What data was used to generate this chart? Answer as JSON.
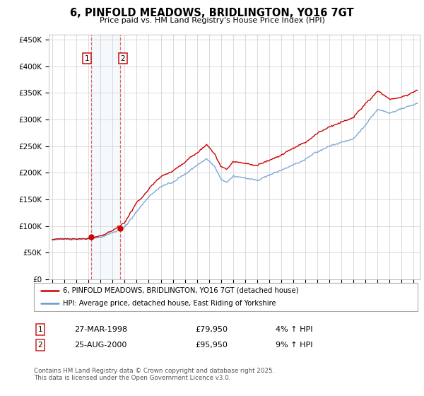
{
  "title": "6, PINFOLD MEADOWS, BRIDLINGTON, YO16 7GT",
  "subtitle": "Price paid vs. HM Land Registry's House Price Index (HPI)",
  "background_color": "#ffffff",
  "plot_bg_color": "#ffffff",
  "grid_color": "#cccccc",
  "ylabel_max": 450000,
  "ylabel_step": 50000,
  "xlim_start": 1994.7,
  "xlim_end": 2025.5,
  "ylim_min": 0,
  "ylim_max": 460000,
  "red_line_color": "#cc0000",
  "blue_line_color": "#6699cc",
  "marker1_date_x": 1998.23,
  "marker1_price": 79950,
  "marker2_date_x": 2000.65,
  "marker2_price": 95950,
  "shade_x1": 1998.23,
  "shade_x2": 2000.65,
  "legend_text1": "6, PINFOLD MEADOWS, BRIDLINGTON, YO16 7GT (detached house)",
  "legend_text2": "HPI: Average price, detached house, East Riding of Yorkshire",
  "table_row1": [
    "1",
    "27-MAR-1998",
    "£79,950",
    "4% ↑ HPI"
  ],
  "table_row2": [
    "2",
    "25-AUG-2000",
    "£95,950",
    "9% ↑ HPI"
  ],
  "footer_text": "Contains HM Land Registry data © Crown copyright and database right 2025.\nThis data is licensed under the Open Government Licence v3.0."
}
